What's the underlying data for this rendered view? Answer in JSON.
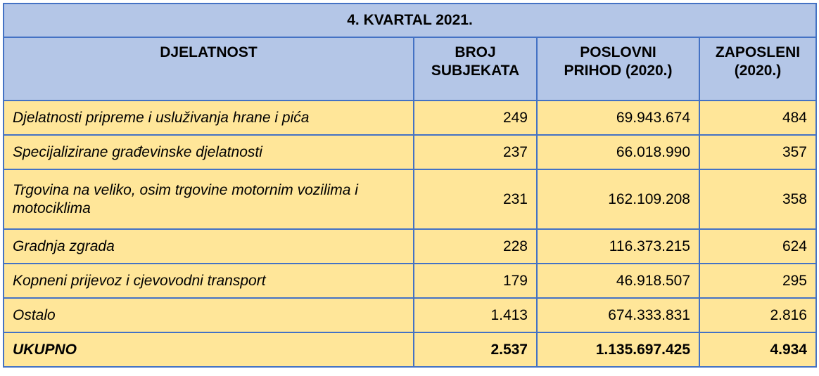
{
  "title": "4. KVARTAL 2021.",
  "table": {
    "header": [
      [
        "DJELATNOST"
      ],
      [
        "BROJ",
        "SUBJEKATA"
      ],
      [
        "POSLOVNI",
        "PRIHOD (2020.)"
      ],
      [
        "ZAPOSLENI",
        "(2020.)"
      ]
    ],
    "rows": [
      [
        "Djelatnosti pripreme i usluživanja hrane i pića",
        "249",
        "69.943.674",
        "484"
      ],
      [
        "Specijalizirane građevinske djelatnosti",
        "237",
        "66.018.990",
        "357"
      ],
      [
        "Trgovina na veliko, osim trgovine motornim vozilima i motociklima",
        "231",
        "162.109.208",
        "358"
      ],
      [
        "Gradnja zgrada",
        "228",
        "116.373.215",
        "624"
      ],
      [
        "Kopneni prijevoz i cjevovodni transport",
        "179",
        "46.918.507",
        "295"
      ],
      [
        "Ostalo",
        "1.413",
        "674.333.831",
        "2.816"
      ]
    ],
    "total": [
      "UKUPNO",
      "2.537",
      "1.135.697.425",
      "4.934"
    ]
  }
}
